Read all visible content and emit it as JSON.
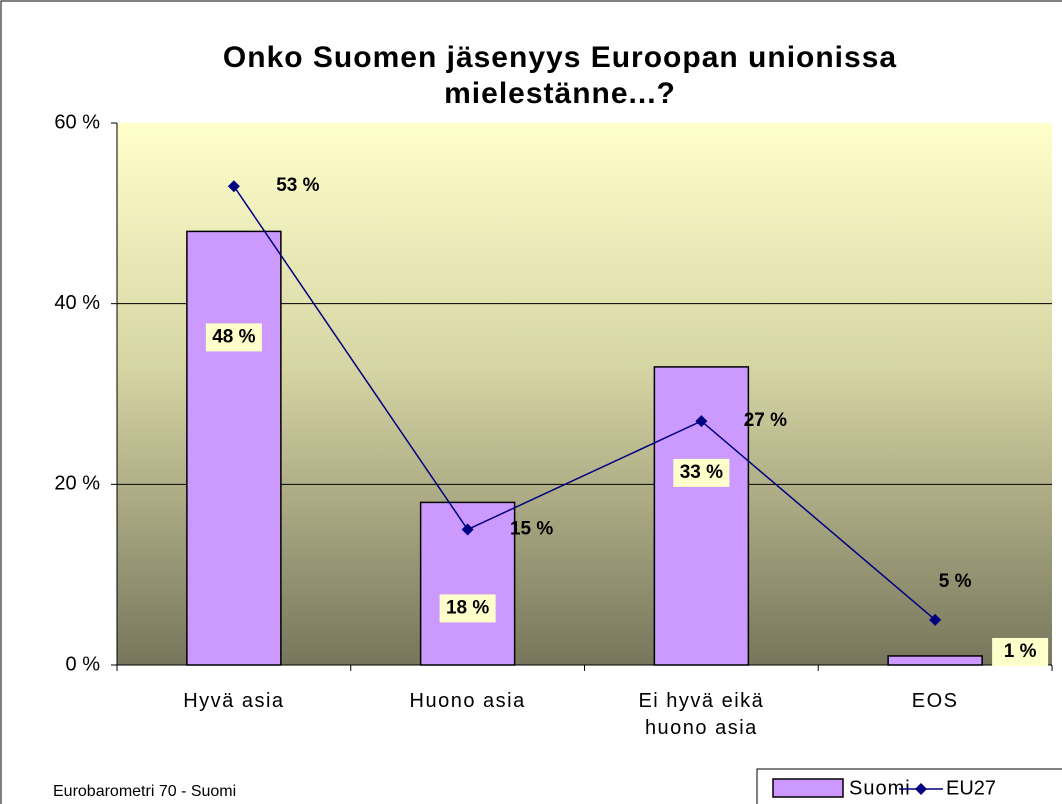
{
  "chart_data": {
    "type": "bar",
    "title": "Onko Suomen jäsenyys Euroopan unionissa mielestänne...?",
    "source": "Eurobarometri 70 - Suomi",
    "categories": [
      "Hyvä asia",
      "Huono asia",
      "Ei hyvä eikä huono asia",
      "EOS"
    ],
    "series": [
      {
        "name": "Suomi",
        "type": "bar",
        "color": "#cc99ff",
        "values": [
          48,
          18,
          33,
          1
        ],
        "value_labels": [
          "48 %",
          "18 %",
          "33 %",
          "1 %"
        ]
      },
      {
        "name": "EU27",
        "type": "line",
        "color": "#000080",
        "values": [
          53,
          15,
          27,
          5
        ],
        "value_labels": [
          "53 %",
          "15 %",
          "27 %",
          "5 %"
        ]
      }
    ],
    "ylim": [
      0,
      60
    ],
    "yticks": [
      {
        "value": 0,
        "label": "0 %"
      },
      {
        "value": 20,
        "label": "20 %"
      },
      {
        "value": 40,
        "label": "40 %"
      },
      {
        "value": 60,
        "label": "60 %"
      }
    ],
    "grid": true
  }
}
